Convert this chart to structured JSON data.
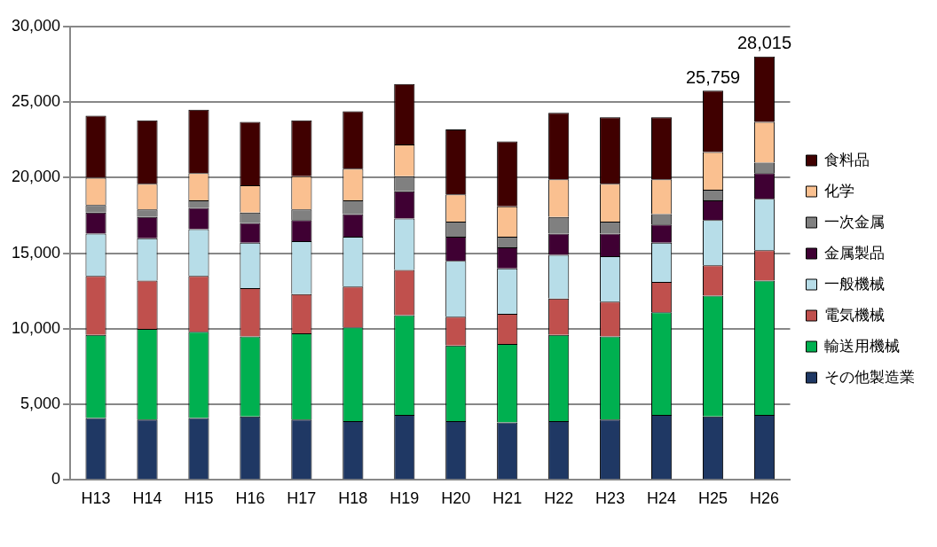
{
  "chart_data": {
    "type": "bar",
    "stacked": true,
    "categories": [
      "H13",
      "H14",
      "H15",
      "H16",
      "H17",
      "H18",
      "H19",
      "H20",
      "H21",
      "H22",
      "H23",
      "H24",
      "H25",
      "H26"
    ],
    "series": [
      {
        "name": "その他製造業",
        "color": "#1f3864",
        "values": [
          4100,
          4000,
          4100,
          4200,
          4000,
          3900,
          4300,
          3900,
          3800,
          3900,
          4000,
          4300,
          4200,
          4300
        ]
      },
      {
        "name": "輸送用機械",
        "color": "#00b050",
        "values": [
          5500,
          6000,
          5700,
          5300,
          5700,
          6200,
          6600,
          5000,
          5200,
          5700,
          5500,
          6800,
          8000,
          8900
        ]
      },
      {
        "name": "電気機械",
        "color": "#c0504d",
        "values": [
          3900,
          3200,
          3700,
          3200,
          2600,
          2700,
          3000,
          1900,
          2000,
          2400,
          2300,
          2000,
          2000,
          2000
        ]
      },
      {
        "name": "一般機械",
        "color": "#b7dde8",
        "values": [
          2800,
          2800,
          3100,
          3000,
          3500,
          3300,
          3400,
          3700,
          3000,
          2900,
          3000,
          2600,
          3000,
          3400
        ]
      },
      {
        "name": "金属製品",
        "color": "#3f0033",
        "values": [
          1400,
          1400,
          1400,
          1300,
          1400,
          1500,
          1800,
          1600,
          1400,
          1400,
          1500,
          1200,
          1300,
          1700
        ]
      },
      {
        "name": "一次金属",
        "color": "#808080",
        "values": [
          500,
          500,
          500,
          700,
          700,
          900,
          1000,
          1000,
          700,
          1100,
          800,
          700,
          700,
          700
        ]
      },
      {
        "name": "化学",
        "color": "#fac090",
        "values": [
          1800,
          1700,
          1800,
          1800,
          2200,
          2100,
          2100,
          1800,
          2000,
          2500,
          2500,
          2300,
          2500,
          2700
        ]
      },
      {
        "name": "食料品",
        "color": "#400000",
        "values": [
          4100,
          4200,
          4200,
          4200,
          3700,
          3800,
          4000,
          4300,
          4300,
          4400,
          4400,
          4100,
          4059,
          4315
        ]
      }
    ],
    "totals": [
      null,
      null,
      null,
      null,
      null,
      null,
      null,
      null,
      null,
      null,
      null,
      null,
      "25,759",
      "28,015"
    ],
    "ylim": [
      0,
      30000
    ],
    "yticks": [
      0,
      {
        "value": 5000,
        "label": "5,000"
      },
      {
        "value": 10000,
        "label": "10,000"
      },
      {
        "value": 15000,
        "label": "15,000"
      },
      {
        "value": 20000,
        "label": "20,000"
      },
      {
        "value": 25000,
        "label": "25,000"
      },
      {
        "value": 30000,
        "label": "30,000"
      }
    ],
    "grid": "y",
    "legend": "right"
  }
}
